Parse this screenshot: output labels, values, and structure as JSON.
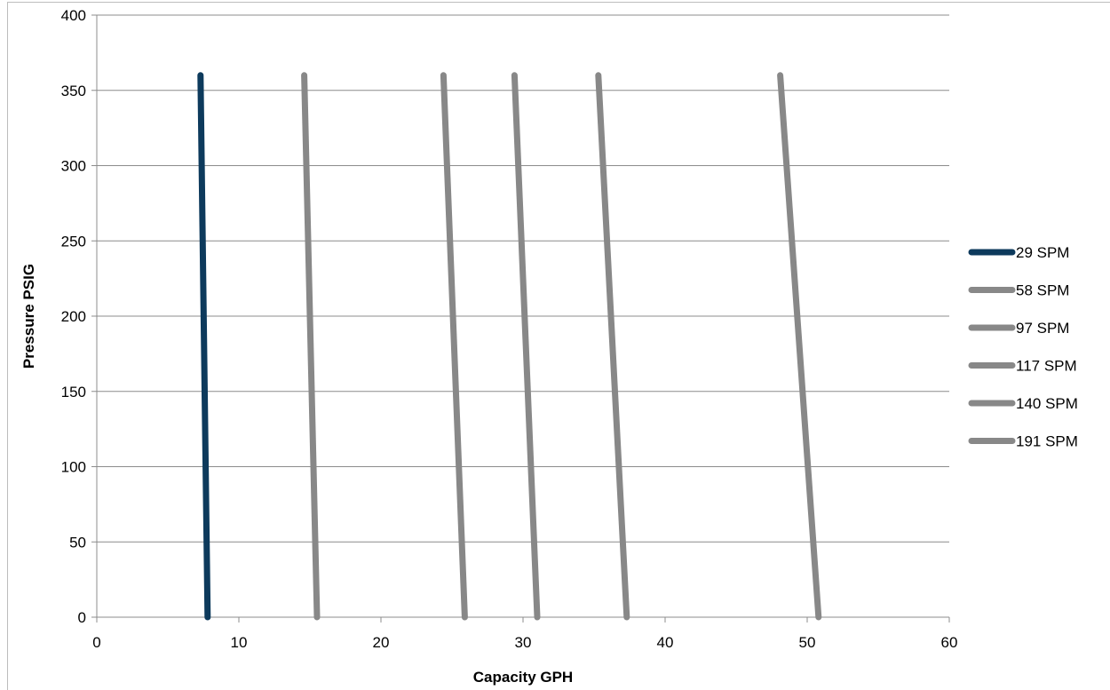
{
  "chart_data": {
    "type": "line",
    "title": "",
    "xlabel": "Capacity GPH",
    "ylabel": "Pressure PSIG",
    "xlim": [
      0,
      60
    ],
    "ylim": [
      0,
      400
    ],
    "x_ticks": [
      0,
      10,
      20,
      30,
      40,
      50,
      60
    ],
    "y_ticks": [
      0,
      50,
      100,
      150,
      200,
      250,
      300,
      350,
      400
    ],
    "grid": "horizontal",
    "legend_position": "right",
    "series": [
      {
        "name": "29 SPM",
        "color": "#0d3a5c",
        "points": [
          [
            7.3,
            360
          ],
          [
            7.8,
            0
          ]
        ]
      },
      {
        "name": "58 SPM",
        "color": "#888888",
        "points": [
          [
            14.6,
            360
          ],
          [
            15.5,
            0
          ]
        ]
      },
      {
        "name": "97 SPM",
        "color": "#888888",
        "points": [
          [
            24.4,
            360
          ],
          [
            25.9,
            0
          ]
        ]
      },
      {
        "name": "117 SPM",
        "color": "#888888",
        "points": [
          [
            29.4,
            360
          ],
          [
            31.0,
            0
          ]
        ]
      },
      {
        "name": "140 SPM",
        "color": "#888888",
        "points": [
          [
            35.3,
            360
          ],
          [
            37.3,
            0
          ]
        ]
      },
      {
        "name": "191 SPM",
        "color": "#888888",
        "points": [
          [
            48.1,
            360
          ],
          [
            50.8,
            0
          ]
        ]
      }
    ]
  }
}
